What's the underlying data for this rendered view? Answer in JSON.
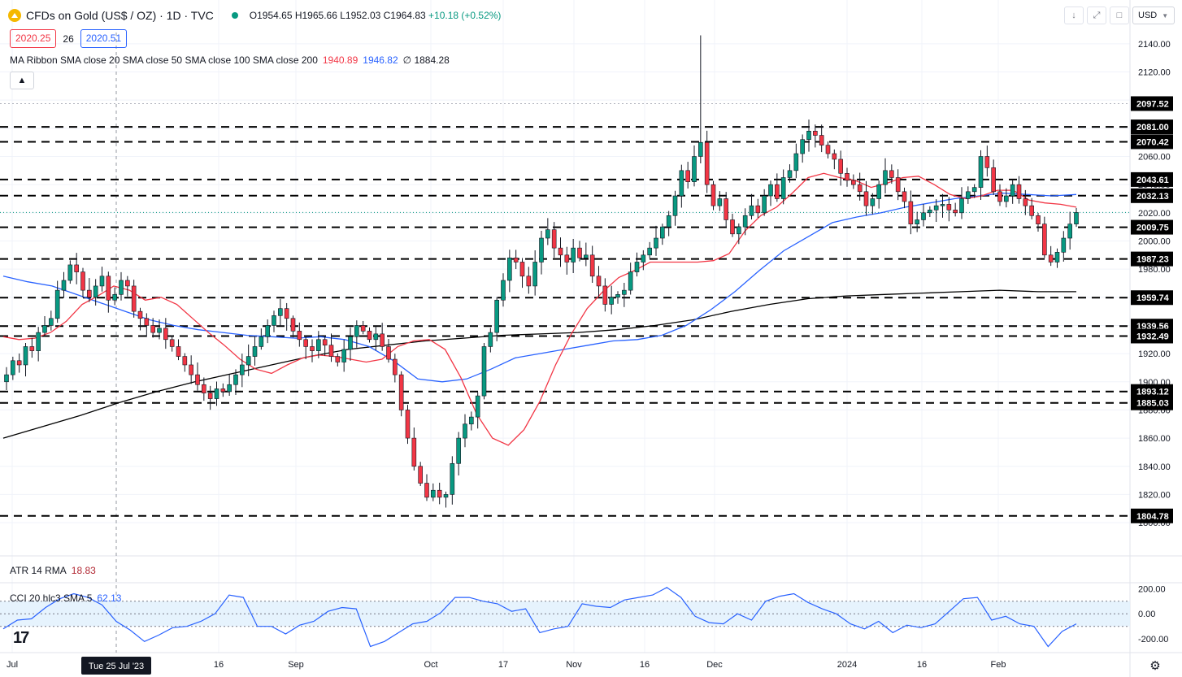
{
  "header": {
    "title": "CFDs on Gold (US$ / OZ) · 1D · TVC",
    "open": "O1954.65",
    "high": "H1965.66",
    "low": "L1952.03",
    "close": "C1964.83",
    "change": "+10.18 (+0.52%)",
    "bid": "2020.25",
    "spread": "26",
    "ask": "2020.51",
    "currency": "USD"
  },
  "ma_legend": {
    "label": "MA Ribbon SMA close 20 SMA close 50 SMA close 100 SMA close 200",
    "v1": "1940.89",
    "v2": "1946.82",
    "v3": "∅  1884.28"
  },
  "atr_legend": {
    "label": "ATR 14 RMA",
    "value": "18.83"
  },
  "cci_legend": {
    "label": "CCI 20 hlc3 SMA 5",
    "value": "62.13"
  },
  "crosshair_date": "Tue 25 Jul '23",
  "colors": {
    "up": "#089981",
    "down": "#f23645",
    "sma20": "#f23645",
    "sma50": "#2962ff",
    "sma200": "#000000",
    "cci": "#2962ff",
    "atr_label": "#b22833"
  },
  "chart_data": {
    "type": "candlestick",
    "price_axis": {
      "ylim": [
        1796,
        2148
      ],
      "ticks": [
        1800,
        1820,
        1840,
        1860,
        1880,
        1900,
        1920,
        1940,
        1960,
        1980,
        2000,
        2020,
        2040,
        2060,
        2080,
        2100,
        2120,
        2140
      ]
    },
    "time_axis_labels": [
      "Jul",
      "16",
      "Sep",
      "Oct",
      "17",
      "Nov",
      "16",
      "Dec",
      "2024",
      "16",
      "Feb"
    ],
    "levels": [
      2097.52,
      2081.0,
      2070.42,
      2043.61,
      2032.13,
      2009.75,
      1987.23,
      1959.74,
      1939.56,
      1932.49,
      1893.12,
      1885.03,
      1804.78
    ],
    "last_price": 2020.25,
    "close_path": [
      1905,
      1915,
      1912,
      1925,
      1922,
      1935,
      1940,
      1945,
      1965,
      1972,
      1983,
      1978,
      1965,
      1960,
      1968,
      1975,
      1958,
      1962,
      1972,
      1968,
      1950,
      1945,
      1940,
      1935,
      1938,
      1930,
      1925,
      1918,
      1912,
      1905,
      1898,
      1892,
      1888,
      1895,
      1893,
      1898,
      1905,
      1912,
      1918,
      1925,
      1932,
      1940,
      1947,
      1952,
      1945,
      1936,
      1930,
      1925,
      1922,
      1930,
      1926,
      1918,
      1914,
      1923,
      1932,
      1940,
      1936,
      1930,
      1934,
      1925,
      1916,
      1905,
      1880,
      1860,
      1840,
      1828,
      1818,
      1823,
      1818,
      1820,
      1842,
      1860,
      1870,
      1875,
      1890,
      1925,
      1935,
      1958,
      1972,
      1988,
      1985,
      1975,
      1968,
      1985,
      2002,
      2008,
      1995,
      1990,
      1985,
      1995,
      1988,
      1990,
      1975,
      1968,
      1955,
      1960,
      1962,
      1965,
      1978,
      1985,
      1990,
      1995,
      2002,
      2010,
      2018,
      2032,
      2050,
      2042,
      2060,
      2070,
      2040,
      2025,
      2030,
      2015,
      2005,
      2010,
      2018,
      2025,
      2020,
      2032,
      2040,
      2030,
      2045,
      2050,
      2062,
      2072,
      2078,
      2075,
      2068,
      2062,
      2058,
      2048,
      2043,
      2040,
      2035,
      2025,
      2030,
      2040,
      2050,
      2045,
      2035,
      2028,
      2012,
      2015,
      2020,
      2022,
      2025,
      2026,
      2022,
      2020,
      2030,
      2035,
      2038,
      2060,
      2052,
      2035,
      2028,
      2032,
      2040,
      2030,
      2025,
      2018,
      2012,
      1990,
      1985,
      1992,
      2002,
      2012,
      2020.25
    ],
    "sma20_path": [
      1932,
      1930,
      1931,
      1935,
      1943,
      1955,
      1961,
      1968,
      1965,
      1958,
      1960,
      1955,
      1945,
      1935,
      1926,
      1916,
      1909,
      1906,
      1912,
      1917,
      1919,
      1918,
      1916,
      1914,
      1916,
      1925,
      1929,
      1930,
      1923,
      1903,
      1877,
      1860,
      1855,
      1866,
      1886,
      1912,
      1934,
      1952,
      1964,
      1974,
      1979,
      1985,
      1985,
      1985,
      1985,
      1986,
      1991,
      2007,
      2018,
      2024,
      2034,
      2045,
      2048,
      2045,
      2043,
      2038,
      2041,
      2045,
      2046,
      2040,
      2033,
      2030,
      2032,
      2036,
      2036,
      2029,
      2027,
      2026,
      2024
    ],
    "sma50_path": [
      1975,
      1971,
      1968,
      1962,
      1956,
      1950,
      1944,
      1940,
      1937,
      1935,
      1933,
      1932,
      1931,
      1932,
      1930,
      1925,
      1915,
      1902,
      1900,
      1902,
      1909,
      1917,
      1920,
      1923,
      1926,
      1929,
      1930,
      1933,
      1940,
      1951,
      1964,
      1979,
      1993,
      2003,
      2013,
      2017,
      2020,
      2024,
      2027,
      2030,
      2032,
      2034,
      2033,
      2032,
      2033
    ],
    "sma200_path": [
      1860,
      1868,
      1876,
      1885,
      1893,
      1900,
      1906,
      1912,
      1918,
      1923,
      1926,
      1929,
      1931,
      1933,
      1934,
      1935,
      1937,
      1940,
      1944,
      1950,
      1955,
      1959,
      1961,
      1962,
      1963,
      1964,
      1965,
      1964,
      1964
    ],
    "atr": {
      "label": "ATR 14 RMA",
      "value": 18.83
    },
    "cci": {
      "ticks": [
        -200,
        0,
        200
      ],
      "band": [
        -100,
        100
      ],
      "path": [
        -120,
        -50,
        -40,
        50,
        120,
        160,
        130,
        70,
        -60,
        -130,
        -220,
        -170,
        -110,
        -100,
        -60,
        0,
        150,
        130,
        -100,
        -100,
        -160,
        -90,
        -60,
        20,
        50,
        40,
        -260,
        -220,
        -150,
        -80,
        -60,
        10,
        130,
        130,
        100,
        80,
        20,
        40,
        -150,
        -120,
        -100,
        80,
        60,
        50,
        110,
        130,
        150,
        210,
        130,
        -20,
        -70,
        -80,
        0,
        -50,
        100,
        140,
        160,
        90,
        40,
        0,
        -80,
        -120,
        -60,
        -150,
        -90,
        -110,
        -80,
        20,
        120,
        130,
        -50,
        -20,
        -80,
        -100,
        -260,
        -140,
        -80
      ]
    }
  }
}
